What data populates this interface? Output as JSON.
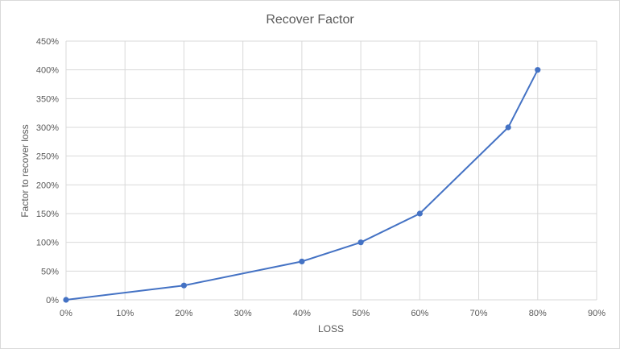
{
  "chart_data": {
    "type": "scatter",
    "title": "Recover Factor",
    "xlabel": "LOSS",
    "ylabel": "Factor to recover loss",
    "xlim": [
      0,
      0.9
    ],
    "ylim": [
      0,
      4.5
    ],
    "x_ticks": [
      "0%",
      "10%",
      "20%",
      "30%",
      "40%",
      "50%",
      "60%",
      "70%",
      "80%",
      "90%"
    ],
    "y_ticks": [
      "0%",
      "50%",
      "100%",
      "150%",
      "200%",
      "250%",
      "300%",
      "350%",
      "400%",
      "450%"
    ],
    "grid": true,
    "legend": "none",
    "series": [
      {
        "color": "#4472c4",
        "points": [
          {
            "x": 0.0,
            "y": 0.0
          },
          {
            "x": 0.2,
            "y": 0.25
          },
          {
            "x": 0.4,
            "y": 0.6667
          },
          {
            "x": 0.5,
            "y": 1.0
          },
          {
            "x": 0.6,
            "y": 1.5
          },
          {
            "x": 0.75,
            "y": 3.0
          },
          {
            "x": 0.8,
            "y": 4.0
          }
        ]
      }
    ]
  }
}
